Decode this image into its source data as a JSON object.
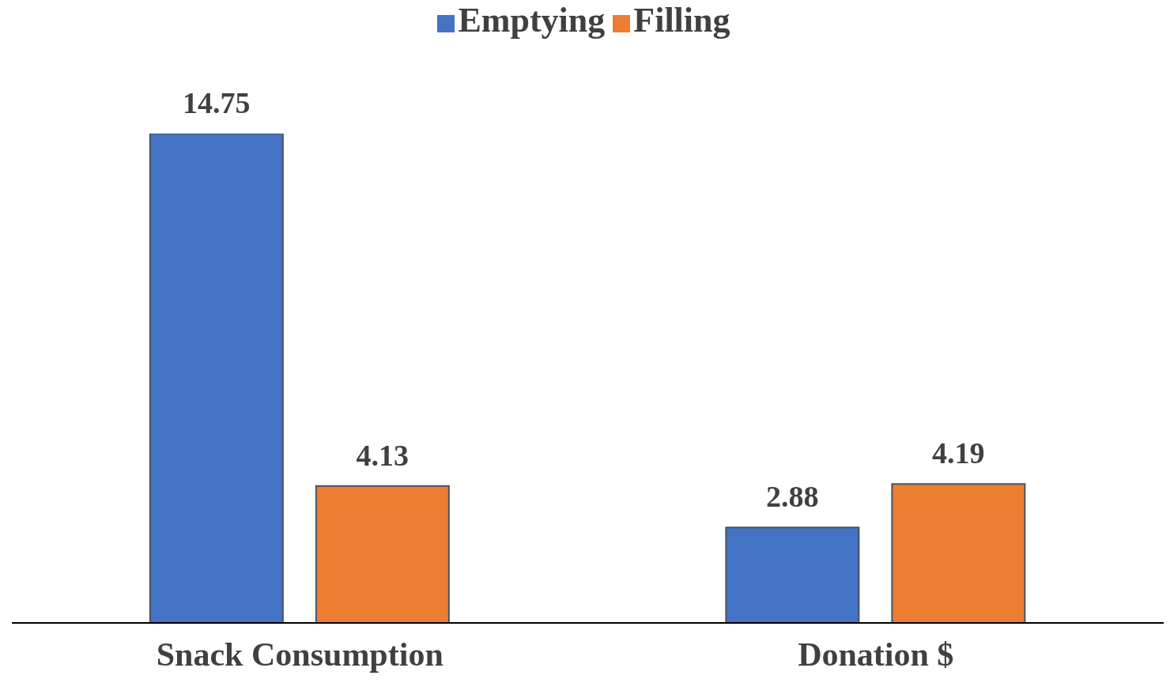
{
  "chart_data": {
    "type": "bar",
    "tick_labels": "x",
    "data_labels": true,
    "legend": "top",
    "grid": false,
    "categories": [
      "Snack Consumption",
      "Donation $"
    ],
    "series": [
      {
        "name": "Emptying",
        "color": "#4472c4",
        "values": [
          14.75,
          2.88
        ]
      },
      {
        "name": "Filling",
        "color": "#ed7d31",
        "values": [
          4.13,
          4.19
        ]
      }
    ]
  }
}
